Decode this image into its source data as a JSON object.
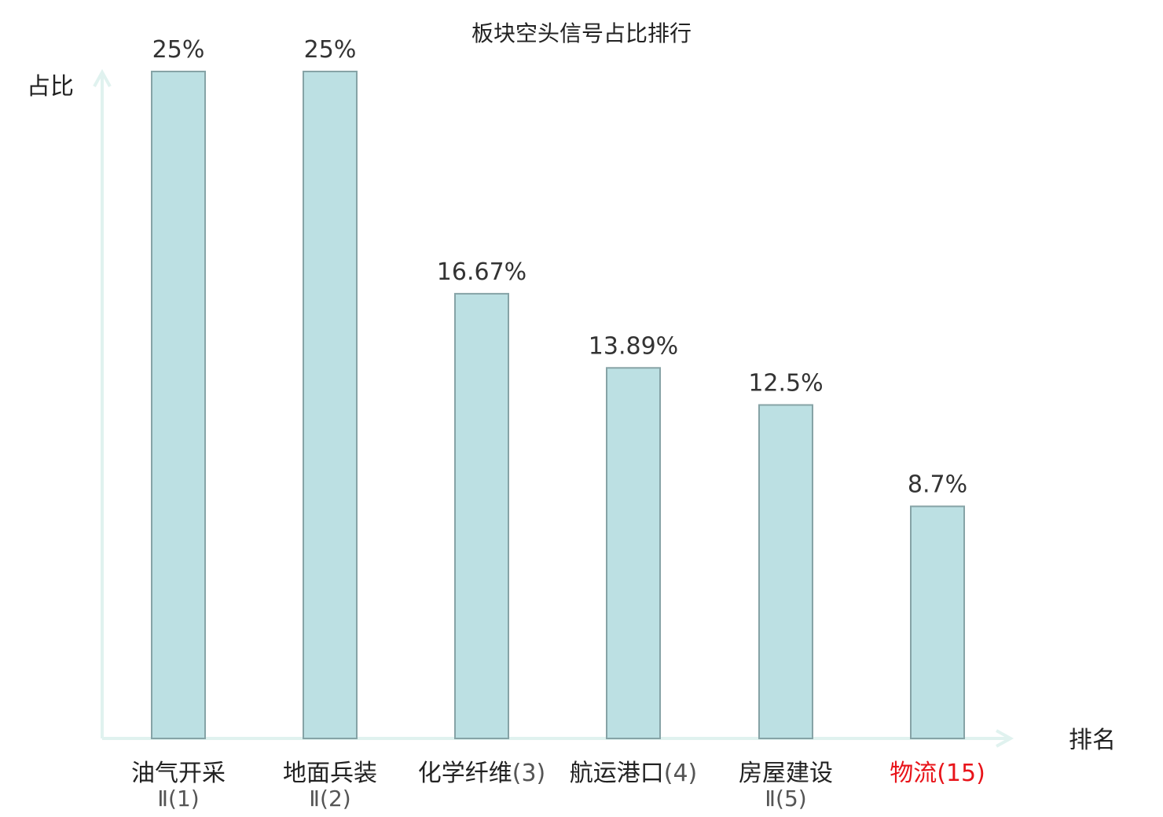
{
  "chart_data": {
    "type": "bar",
    "title": "板块空头信号占比排行",
    "ylabel": "占比",
    "xlabel": "排名",
    "ylim": [
      0,
      25
    ],
    "grid": false,
    "categories": [
      {
        "name": "油气开采",
        "rank": "Ⅱ(1)",
        "highlight": false
      },
      {
        "name": "地面兵装",
        "rank": "Ⅱ(2)",
        "highlight": false
      },
      {
        "name": "化学纤维",
        "rank": "(3)",
        "highlight": false
      },
      {
        "name": "航运港口",
        "rank": "(4)",
        "highlight": false
      },
      {
        "name": "房屋建设",
        "rank": "Ⅱ(5)",
        "highlight": false
      },
      {
        "name": "物流",
        "rank": "(15)",
        "highlight": true
      }
    ],
    "values": [
      25,
      25,
      16.67,
      13.89,
      12.5,
      8.7
    ],
    "value_labels": [
      "25%",
      "25%",
      "16.67%",
      "13.89%",
      "12.5%",
      "8.7%"
    ],
    "colors": {
      "bar_fill": "#bce0e3",
      "bar_stroke": "#86a3a6",
      "axis": "#e0f2ef",
      "label": "#333333",
      "highlight": "#e8141a"
    }
  }
}
